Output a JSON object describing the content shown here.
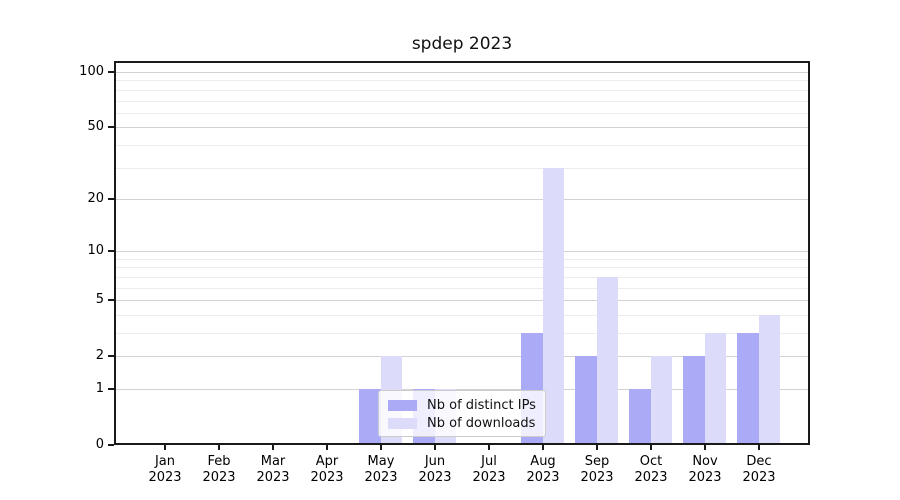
{
  "chart_data": {
    "type": "bar",
    "title": "spdep 2023",
    "year_label": "2023",
    "categories": [
      "Jan",
      "Feb",
      "Mar",
      "Apr",
      "May",
      "Jun",
      "Jul",
      "Aug",
      "Sep",
      "Oct",
      "Nov",
      "Dec"
    ],
    "series": [
      {
        "name": "Nb of distinct IPs",
        "color": "#aaaaf7",
        "values": [
          0,
          0,
          0,
          0,
          1,
          1,
          0,
          3,
          2,
          1,
          2,
          3
        ]
      },
      {
        "name": "Nb of downloads",
        "color": "#dcdcfa",
        "values": [
          0,
          0,
          0,
          0,
          2,
          1,
          0,
          30,
          7,
          2,
          3,
          4
        ]
      }
    ],
    "xlabel": "",
    "ylabel": "",
    "yscale": "log1p",
    "ylim": [
      0,
      115
    ],
    "y_tick_values": [
      0,
      1,
      2,
      5,
      10,
      20,
      50,
      100
    ],
    "y_minor_gridline_values": [
      3,
      4,
      6,
      7,
      8,
      9,
      30,
      40,
      60,
      70,
      80,
      90
    ],
    "grid": "horizontal",
    "legend_position": "inside lower-center",
    "axis_color": "#1a1a1a",
    "major_grid_color": "#d2d2d2",
    "minor_grid_color": "#ececec"
  }
}
